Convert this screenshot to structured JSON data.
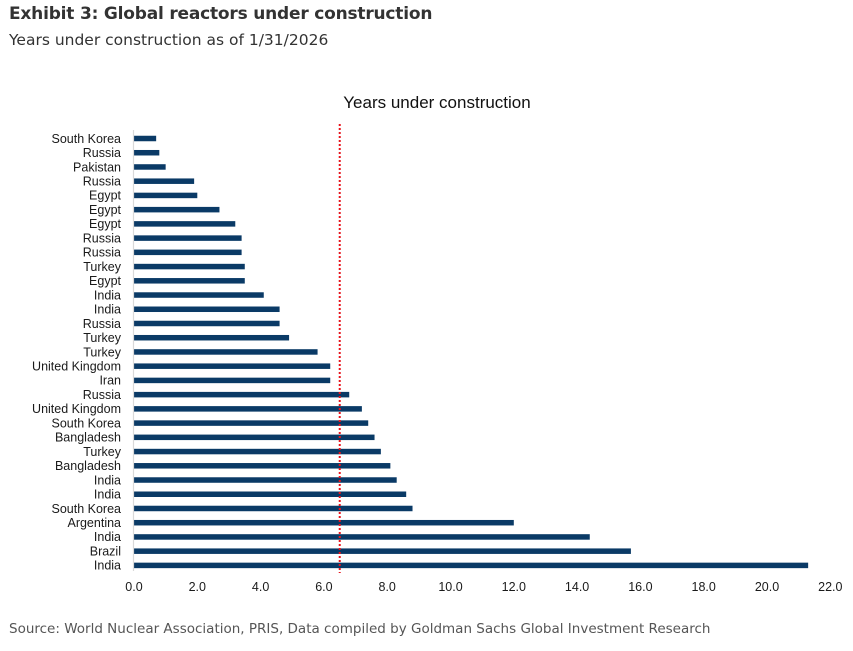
{
  "header": {
    "title": "Exhibit 3: Global reactors under construction",
    "subtitle": "Years under construction as of 1/31/2026"
  },
  "footer": {
    "source": "Source: World Nuclear Association, PRIS, Data compiled by Goldman Sachs Global Investment Research"
  },
  "colors": {
    "bar": "#0a3a66",
    "reference_line": "#e8141c",
    "axis": "#d9d9d9"
  },
  "chart_data": {
    "type": "bar",
    "orientation": "horizontal",
    "title": "Years under construction",
    "xlabel": "",
    "ylabel": "",
    "xlim": [
      0,
      22
    ],
    "x_ticks": [
      "0.0",
      "2.0",
      "4.0",
      "6.0",
      "8.0",
      "10.0",
      "12.0",
      "14.0",
      "16.0",
      "18.0",
      "20.0",
      "22.0"
    ],
    "grid": false,
    "legend": "none",
    "reference_line": {
      "value": 6.5,
      "style": "dotted",
      "orientation": "vertical"
    },
    "categories": [
      "South Korea",
      "Russia",
      "Pakistan",
      "Russia",
      "Egypt",
      "Egypt",
      "Egypt",
      "Russia",
      "Russia",
      "Turkey",
      "Egypt",
      "India",
      "India",
      "Russia",
      "Turkey",
      "Turkey",
      "United Kingdom",
      "Iran",
      "Russia",
      "United Kingdom",
      "South Korea",
      "Bangladesh",
      "Turkey",
      "Bangladesh",
      "India",
      "India",
      "South Korea",
      "Argentina",
      "India",
      "Brazil",
      "India"
    ],
    "values": [
      0.7,
      0.8,
      1.0,
      1.9,
      2.0,
      2.7,
      3.2,
      3.4,
      3.4,
      3.5,
      3.5,
      4.1,
      4.6,
      4.6,
      4.9,
      5.8,
      6.2,
      6.2,
      6.8,
      7.2,
      7.4,
      7.6,
      7.8,
      8.1,
      8.3,
      8.6,
      8.8,
      12.0,
      14.4,
      15.7,
      21.3
    ]
  }
}
